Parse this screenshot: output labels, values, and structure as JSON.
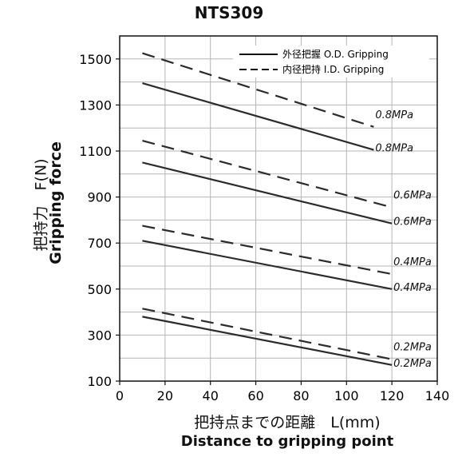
{
  "chart_data": {
    "type": "line",
    "title": "NTS309",
    "xlabel_jp": "把持点までの距離　L(mm)",
    "xlabel_en": "Distance to gripping point",
    "ylabel_jp": "把持力　F(N)",
    "ylabel_en": "Gripping force",
    "xlim": [
      0,
      140
    ],
    "ylim": [
      100,
      1600
    ],
    "xticks": [
      "0",
      "20",
      "40",
      "60",
      "80",
      "100",
      "120",
      "140"
    ],
    "yticks": [
      "100",
      "300",
      "500",
      "700",
      "900",
      "1100",
      "1300",
      "1500"
    ],
    "xtick_values": [
      0,
      20,
      40,
      60,
      80,
      100,
      120,
      140
    ],
    "ytick_values": [
      100,
      300,
      500,
      700,
      900,
      1100,
      1300,
      1500
    ],
    "grid": true,
    "legend_position": "top-right",
    "legend": [
      {
        "label": "外径把握 O.D. Gripping",
        "style": "solid"
      },
      {
        "label": "内径把持 I.D. Gripping",
        "style": "dashed"
      }
    ],
    "series": [
      {
        "style": "dashed",
        "label": "0.8MPa",
        "x": [
          10,
          112
        ],
        "y": [
          1525,
          1205
        ]
      },
      {
        "style": "solid",
        "label": "0.8MPa",
        "x": [
          10,
          112
        ],
        "y": [
          1395,
          1105
        ]
      },
      {
        "style": "dashed",
        "label": "0.6MPa",
        "x": [
          10,
          120
        ],
        "y": [
          1145,
          855
        ]
      },
      {
        "style": "solid",
        "label": "0.6MPa",
        "x": [
          10,
          120
        ],
        "y": [
          1050,
          785
        ]
      },
      {
        "style": "dashed",
        "label": "0.4MPa",
        "x": [
          10,
          120
        ],
        "y": [
          775,
          565
        ]
      },
      {
        "style": "solid",
        "label": "0.4MPa",
        "x": [
          10,
          120
        ],
        "y": [
          710,
          500
        ]
      },
      {
        "style": "dashed",
        "label": "0.2MPa",
        "x": [
          10,
          120
        ],
        "y": [
          415,
          195
        ]
      },
      {
        "style": "solid",
        "label": "0.2MPa",
        "x": [
          10,
          120
        ],
        "y": [
          380,
          170
        ]
      }
    ]
  }
}
